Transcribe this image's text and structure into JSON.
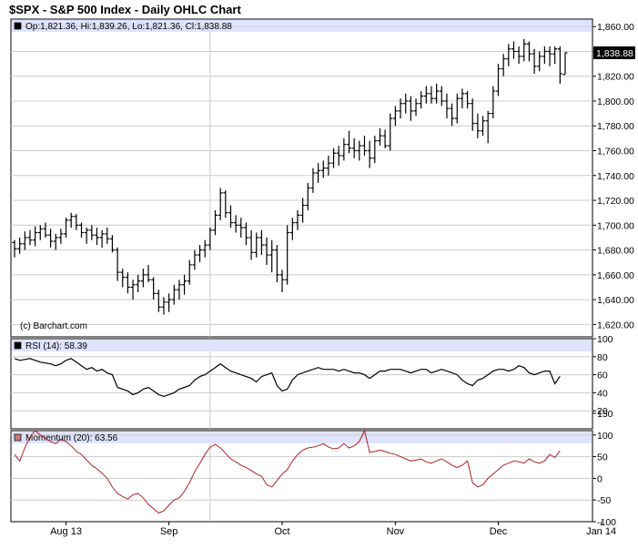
{
  "title": "$SPX - S&P 500 Index - Daily OHLC Chart",
  "watermark": "(c) Barchart.com",
  "colors": {
    "grid": "#cccccc",
    "legend_band": "#dfe3ff",
    "price": "#000000",
    "rsi": "#000000",
    "momentum": "#b22222",
    "last_price_box": "#000000"
  },
  "x_labels": [
    "Aug 13",
    "Sep",
    "Oct",
    "Nov",
    "Dec",
    "Jan 14"
  ],
  "chart_data": [
    {
      "type": "ohlc",
      "legend": "Op:1,821.36, Hi:1,839.26, Lo:1,821.36, Cl:1,838.88",
      "last_price": "1,838.88",
      "ylim": [
        1610,
        1866
      ],
      "yticks": [
        1620,
        1640,
        1660,
        1680,
        1700,
        1720,
        1740,
        1760,
        1780,
        1800,
        1820,
        1840,
        1860
      ],
      "ytick_labels": [
        "1,620.00",
        "1,640.00",
        "1,660.00",
        "1,680.00",
        "1,700.00",
        "1,720.00",
        "1,740.00",
        "1,760.00",
        "1,780.00",
        "1,800.00",
        "1,820.00",
        "1,840.00",
        "1,860.00"
      ],
      "series": [
        [
          1686,
          1688,
          1674,
          1681
        ],
        [
          1681,
          1690,
          1677,
          1685
        ],
        [
          1685,
          1695,
          1680,
          1690
        ],
        [
          1690,
          1696,
          1684,
          1688
        ],
        [
          1688,
          1699,
          1683,
          1694
        ],
        [
          1694,
          1700,
          1688,
          1697
        ],
        [
          1697,
          1702,
          1690,
          1692
        ],
        [
          1692,
          1697,
          1682,
          1687
        ],
        [
          1687,
          1693,
          1680,
          1690
        ],
        [
          1690,
          1697,
          1685,
          1693
        ],
        [
          1693,
          1706,
          1690,
          1704
        ],
        [
          1704,
          1710,
          1698,
          1707
        ],
        [
          1707,
          1709,
          1696,
          1700
        ],
        [
          1700,
          1702,
          1690,
          1694
        ],
        [
          1694,
          1698,
          1685,
          1696
        ],
        [
          1696,
          1700,
          1688,
          1692
        ],
        [
          1692,
          1698,
          1684,
          1690
        ],
        [
          1690,
          1696,
          1682,
          1693
        ],
        [
          1693,
          1698,
          1685,
          1689
        ],
        [
          1689,
          1692,
          1678,
          1680
        ],
        [
          1680,
          1682,
          1655,
          1662
        ],
        [
          1662,
          1665,
          1650,
          1658
        ],
        [
          1658,
          1662,
          1645,
          1650
        ],
        [
          1650,
          1656,
          1640,
          1652
        ],
        [
          1652,
          1660,
          1646,
          1655
        ],
        [
          1655,
          1665,
          1650,
          1660
        ],
        [
          1660,
          1668,
          1654,
          1656
        ],
        [
          1656,
          1658,
          1640,
          1645
        ],
        [
          1645,
          1648,
          1630,
          1634
        ],
        [
          1634,
          1642,
          1628,
          1638
        ],
        [
          1638,
          1645,
          1630,
          1640
        ],
        [
          1640,
          1652,
          1636,
          1648
        ],
        [
          1648,
          1656,
          1640,
          1652
        ],
        [
          1652,
          1660,
          1644,
          1655
        ],
        [
          1655,
          1672,
          1652,
          1668
        ],
        [
          1668,
          1680,
          1664,
          1676
        ],
        [
          1676,
          1684,
          1670,
          1680
        ],
        [
          1680,
          1688,
          1674,
          1684
        ],
        [
          1684,
          1698,
          1680,
          1696
        ],
        [
          1696,
          1712,
          1692,
          1708
        ],
        [
          1708,
          1730,
          1704,
          1726
        ],
        [
          1726,
          1728,
          1706,
          1710
        ],
        [
          1710,
          1716,
          1698,
          1702
        ],
        [
          1702,
          1708,
          1694,
          1700
        ],
        [
          1700,
          1706,
          1690,
          1698
        ],
        [
          1698,
          1702,
          1684,
          1690
        ],
        [
          1690,
          1696,
          1672,
          1678
        ],
        [
          1678,
          1694,
          1674,
          1690
        ],
        [
          1690,
          1696,
          1676,
          1684
        ],
        [
          1684,
          1690,
          1668,
          1676
        ],
        [
          1676,
          1688,
          1662,
          1680
        ],
        [
          1680,
          1684,
          1654,
          1660
        ],
        [
          1660,
          1664,
          1646,
          1656
        ],
        [
          1656,
          1700,
          1652,
          1694
        ],
        [
          1694,
          1706,
          1688,
          1702
        ],
        [
          1702,
          1712,
          1696,
          1708
        ],
        [
          1708,
          1722,
          1702,
          1716
        ],
        [
          1716,
          1734,
          1712,
          1730
        ],
        [
          1730,
          1746,
          1726,
          1742
        ],
        [
          1742,
          1750,
          1734,
          1744
        ],
        [
          1744,
          1752,
          1738,
          1746
        ],
        [
          1746,
          1756,
          1740,
          1750
        ],
        [
          1750,
          1762,
          1746,
          1758
        ],
        [
          1758,
          1764,
          1748,
          1756
        ],
        [
          1756,
          1770,
          1752,
          1765
        ],
        [
          1765,
          1776,
          1758,
          1762
        ],
        [
          1762,
          1770,
          1754,
          1760
        ],
        [
          1760,
          1768,
          1752,
          1764
        ],
        [
          1764,
          1772,
          1756,
          1760
        ],
        [
          1760,
          1768,
          1746,
          1754
        ],
        [
          1754,
          1772,
          1750,
          1768
        ],
        [
          1768,
          1778,
          1764,
          1772
        ],
        [
          1772,
          1777,
          1762,
          1764
        ],
        [
          1764,
          1790,
          1760,
          1786
        ],
        [
          1786,
          1796,
          1780,
          1792
        ],
        [
          1792,
          1802,
          1786,
          1798
        ],
        [
          1798,
          1806,
          1790,
          1800
        ],
        [
          1800,
          1804,
          1784,
          1792
        ],
        [
          1792,
          1802,
          1788,
          1798
        ],
        [
          1798,
          1808,
          1794,
          1804
        ],
        [
          1804,
          1812,
          1798,
          1806
        ],
        [
          1806,
          1812,
          1798,
          1802
        ],
        [
          1802,
          1814,
          1798,
          1808
        ],
        [
          1808,
          1812,
          1796,
          1800
        ],
        [
          1800,
          1806,
          1786,
          1794
        ],
        [
          1794,
          1798,
          1780,
          1786
        ],
        [
          1786,
          1806,
          1782,
          1802
        ],
        [
          1802,
          1810,
          1794,
          1806
        ],
        [
          1806,
          1808,
          1794,
          1798
        ],
        [
          1798,
          1802,
          1776,
          1782
        ],
        [
          1782,
          1790,
          1770,
          1776
        ],
        [
          1776,
          1788,
          1772,
          1784
        ],
        [
          1784,
          1792,
          1766,
          1790
        ],
        [
          1790,
          1812,
          1786,
          1808
        ],
        [
          1808,
          1830,
          1804,
          1826
        ],
        [
          1826,
          1838,
          1820,
          1834
        ],
        [
          1834,
          1846,
          1828,
          1842
        ],
        [
          1842,
          1848,
          1834,
          1840
        ],
        [
          1840,
          1844,
          1830,
          1836
        ],
        [
          1836,
          1850,
          1832,
          1846
        ],
        [
          1846,
          1848,
          1832,
          1838
        ],
        [
          1838,
          1842,
          1822,
          1828
        ],
        [
          1828,
          1840,
          1824,
          1836
        ],
        [
          1836,
          1844,
          1830,
          1840
        ],
        [
          1840,
          1844,
          1828,
          1838
        ],
        [
          1838,
          1844,
          1830,
          1842
        ],
        [
          1842,
          1844,
          1814,
          1822
        ],
        [
          1821.36,
          1839.26,
          1821.36,
          1838.88
        ]
      ]
    },
    {
      "type": "line",
      "legend": "RSI (14): 58.39",
      "ylim": [
        0,
        100
      ],
      "yticks": [
        20,
        40,
        60,
        80,
        100
      ],
      "values": [
        78,
        76,
        77,
        78,
        76,
        74,
        73,
        72,
        70,
        72,
        76,
        78,
        74,
        70,
        66,
        68,
        64,
        66,
        62,
        60,
        46,
        44,
        42,
        38,
        40,
        44,
        46,
        42,
        38,
        36,
        38,
        40,
        44,
        46,
        48,
        54,
        58,
        60,
        64,
        68,
        72,
        68,
        64,
        62,
        60,
        58,
        56,
        52,
        58,
        60,
        62,
        48,
        42,
        44,
        54,
        60,
        62,
        64,
        66,
        68,
        66,
        66,
        66,
        64,
        66,
        64,
        62,
        62,
        60,
        56,
        60,
        64,
        64,
        66,
        66,
        66,
        64,
        62,
        64,
        66,
        66,
        62,
        64,
        66,
        64,
        62,
        60,
        54,
        50,
        48,
        54,
        56,
        60,
        64,
        66,
        66,
        64,
        66,
        70,
        68,
        62,
        60,
        62,
        64,
        64,
        50,
        58.39
      ]
    },
    {
      "type": "line",
      "legend": "Momentum (20): 63.56",
      "ylim": [
        -100,
        110
      ],
      "yticks": [
        -100,
        -50,
        0,
        50,
        100,
        150
      ],
      "values": [
        55,
        40,
        70,
        95,
        110,
        100,
        92,
        85,
        80,
        90,
        85,
        75,
        62,
        55,
        42,
        30,
        22,
        12,
        0,
        -20,
        -35,
        -42,
        -48,
        -38,
        -35,
        -45,
        -60,
        -70,
        -80,
        -75,
        -62,
        -50,
        -45,
        -30,
        -10,
        15,
        35,
        55,
        72,
        78,
        70,
        58,
        45,
        38,
        30,
        25,
        18,
        10,
        5,
        -15,
        -20,
        -5,
        10,
        20,
        40,
        55,
        65,
        70,
        72,
        75,
        80,
        72,
        68,
        70,
        80,
        70,
        75,
        85,
        110,
        60,
        62,
        65,
        62,
        58,
        55,
        50,
        45,
        40,
        42,
        45,
        38,
        35,
        40,
        45,
        38,
        30,
        25,
        30,
        40,
        -10,
        -20,
        -15,
        0,
        10,
        20,
        30,
        35,
        40,
        38,
        35,
        45,
        38,
        35,
        40,
        55,
        48,
        63.56
      ]
    }
  ]
}
